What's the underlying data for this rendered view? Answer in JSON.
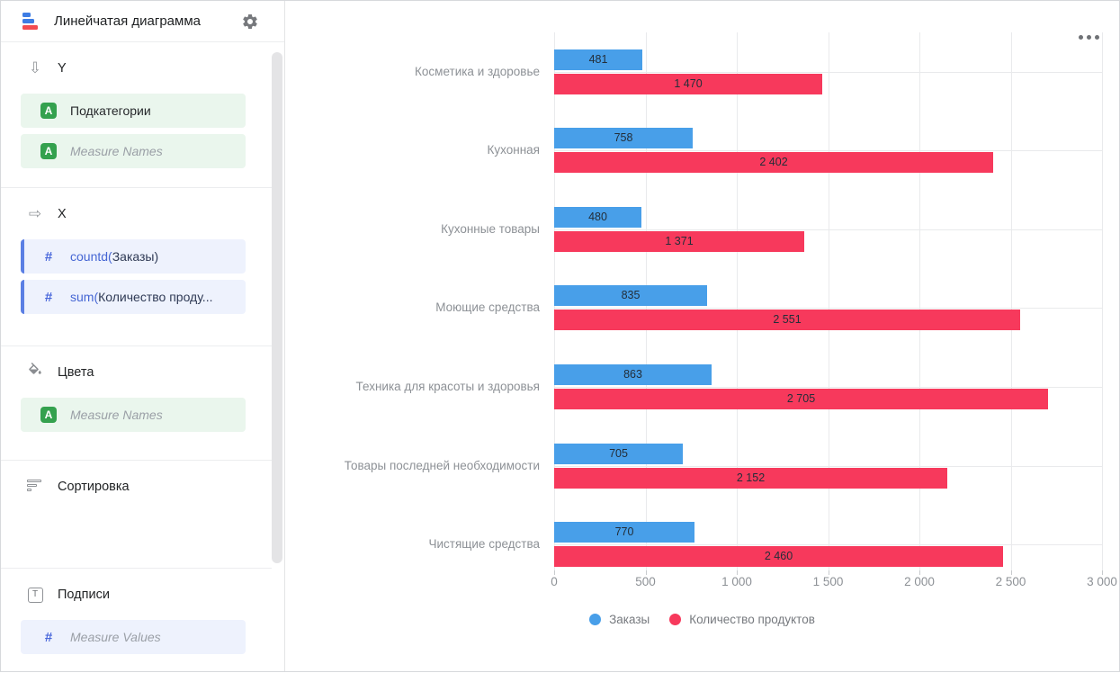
{
  "header": {
    "title": "Линейчатая диаграмма"
  },
  "sidebar": {
    "sections": [
      {
        "id": "y",
        "icon": "arrow-down-icon",
        "title": "Y",
        "chips": [
          {
            "type": "dimension",
            "text": "Подкатегории",
            "muted": false
          },
          {
            "type": "dimension",
            "text": "Measure Names",
            "muted": true
          }
        ]
      },
      {
        "id": "x",
        "icon": "arrow-right-icon",
        "title": "X",
        "chips": [
          {
            "type": "measure",
            "accent": true,
            "prefix": "countd(",
            "text": "Заказы)",
            "muted": false
          },
          {
            "type": "measure",
            "accent": true,
            "prefix": "sum(",
            "text": "Количество проду...",
            "muted": false
          }
        ]
      },
      {
        "id": "colors",
        "icon": "paint-bucket-icon",
        "title": "Цвета",
        "chips": [
          {
            "type": "dimension",
            "text": "Measure Names",
            "muted": true
          }
        ]
      },
      {
        "id": "sort",
        "icon": "sort-icon",
        "title": "Сортировка",
        "chips": []
      },
      {
        "id": "labels",
        "icon": "text-icon",
        "title": "Подписи",
        "chips": [
          {
            "type": "measure",
            "accent": false,
            "text": "Measure Values",
            "muted": true
          }
        ]
      }
    ]
  },
  "chart_data": {
    "type": "bar",
    "orientation": "horizontal",
    "categories": [
      "Косметика и здоровье",
      "Кухонная",
      "Кухонные товары",
      "Моющие средства",
      "Техника для красоты и здоровья",
      "Товары последней необходимости",
      "Чистящие средства"
    ],
    "series": [
      {
        "name": "Заказы",
        "color": "#489FE9",
        "values": [
          481,
          758,
          480,
          835,
          863,
          705,
          770
        ]
      },
      {
        "name": "Количество продуктов",
        "color": "#F7395C",
        "values": [
          1470,
          2402,
          1371,
          2551,
          2705,
          2152,
          2460
        ]
      }
    ],
    "xlim": [
      0,
      3000
    ],
    "x_ticks": [
      0,
      500,
      1000,
      1500,
      2000,
      2500,
      3000
    ],
    "grid": true,
    "legend_position": "bottom",
    "value_labels_inside_bars": true
  },
  "colors": {
    "series_blue": "#489FE9",
    "series_red": "#F7395C",
    "chip_green_bg": "#EAF6ED",
    "chip_green_icon": "#34A14E",
    "chip_blue_bg": "#EEF2FD",
    "chip_accent_border": "#5B7FE4",
    "measure_function_text": "#4566D4",
    "gridline": "#E9EAEC"
  }
}
